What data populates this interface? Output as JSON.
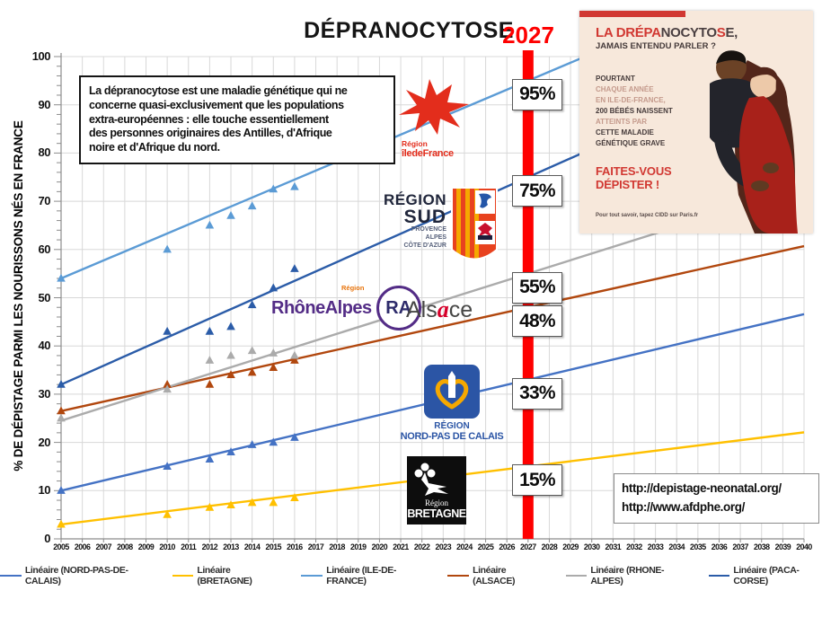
{
  "title": "DÉPRANOCYTOSE",
  "year_marker": "2027",
  "y_axis_title": "% DE DÉPISTAGE PARMI LES NOURISSONS NÉS EN FRANCE",
  "description_lines": [
    "La  dépranocytose est une maladie génétique qui ne",
    "concerne quasi-exclusivement que les populations",
    "extra-européennes : elle touche essentiellement",
    "des personnes originaires des Antilles, d'Afrique",
    "noire et d'Afrique du nord."
  ],
  "links": [
    "http://depistage-neonatal.org/",
    "http://www.afdphe.org/"
  ],
  "chart_data": {
    "type": "scatter",
    "x_range": [
      2005,
      2040
    ],
    "y_range": [
      0,
      100
    ],
    "grid": true,
    "marker_year": 2027,
    "marker_color": "#FE0000",
    "x_ticks": [
      2005,
      2006,
      2007,
      2008,
      2009,
      2010,
      2011,
      2012,
      2013,
      2014,
      2015,
      2016,
      2017,
      2018,
      2019,
      2020,
      2021,
      2022,
      2023,
      2024,
      2025,
      2026,
      2027,
      2028,
      2029,
      2030,
      2031,
      2032,
      2033,
      2034,
      2035,
      2036,
      2037,
      2038,
      2039,
      2040
    ],
    "y_ticks": [
      0,
      10,
      20,
      30,
      40,
      50,
      60,
      70,
      80,
      90,
      100
    ],
    "scatter_years": [
      2005,
      2010,
      2012,
      2013,
      2014,
      2015,
      2016
    ],
    "series": [
      {
        "name": "BRETAGNE",
        "color": "#FFC000",
        "points": [
          3,
          5,
          6.5,
          7,
          7.5,
          7.5,
          8.5
        ],
        "trend_2005": 3,
        "trend_2027": 15,
        "label_2027": "15%"
      },
      {
        "name": "NORD-PAS-DE-CALAIS",
        "color": "#4472C4",
        "points": [
          10,
          15,
          16.5,
          18,
          19.5,
          20,
          21
        ],
        "trend_2005": 10,
        "trend_2027": 33,
        "label_2027": "33%"
      },
      {
        "name": "ALSACE",
        "color": "#B1470E",
        "points": [
          26.5,
          32,
          32,
          34,
          34.5,
          35.5,
          37
        ],
        "trend_2005": 26.5,
        "trend_2027": 48,
        "label_2027": "48%"
      },
      {
        "name": "RHONE-ALPES",
        "color": "#ABABAB",
        "points": [
          25,
          31,
          37,
          38,
          39,
          38.5,
          38
        ],
        "trend_2005": 24.5,
        "trend_2027": 55,
        "label_2027": "55%"
      },
      {
        "name": "PACA-CORSE",
        "color": "#2B5CA8",
        "points": [
          32,
          43,
          43,
          44,
          48.5,
          52,
          56
        ],
        "trend_2005": 32,
        "trend_2027": 75,
        "label_2027": "75%"
      },
      {
        "name": "ILE-DE-FRANCE",
        "color": "#5B9BD5",
        "points": [
          54,
          60,
          65,
          67,
          69,
          72.5,
          73
        ],
        "trend_2005": 54,
        "trend_2027": 95,
        "label_2027": "95%"
      }
    ],
    "legend": [
      {
        "label": "Linéaire (NORD-PAS-DE-CALAIS)",
        "color": "#4472C4"
      },
      {
        "label": "Linéaire (BRETAGNE)",
        "color": "#FFC000"
      },
      {
        "label": "Linéaire (ILE-DE-FRANCE)",
        "color": "#5B9BD5"
      },
      {
        "label": "Linéaire (ALSACE)",
        "color": "#B1470E"
      },
      {
        "label": "Linéaire (RHONE-ALPES)",
        "color": "#ABABAB"
      },
      {
        "label": "Linéaire (PACA-CORSE)",
        "color": "#2B5CA8"
      }
    ]
  },
  "logos": {
    "ile_de_france": {
      "line1": "Région",
      "line2": "îledeFrance"
    },
    "region_sud": {
      "line1": "RÉGION",
      "line2": "SUD",
      "sub1": "PROVENCE",
      "sub2": "ALPES",
      "sub3": "CÔTE D'AZUR"
    },
    "rhone_alpes": {
      "small": "Région",
      "text": "RhôneAlpes",
      "badge": "RA"
    },
    "alsace": {
      "pre": "Als",
      "mid": "a",
      "post": "ce"
    },
    "nord_pas_de_calais": {
      "line1": "RÉGION",
      "line2": "NORD-PAS DE CALAIS"
    },
    "bretagne": {
      "line1": "Région",
      "line2": "BRETAGNE"
    }
  },
  "poster": {
    "title_parts": [
      {
        "t": "LA DRÉPA",
        "c": "red"
      },
      {
        "t": "NOCYTO",
        "c": "dark"
      },
      {
        "t": "S",
        "c": "red"
      },
      {
        "t": "E,",
        "c": "dark"
      }
    ],
    "subtitle": "JAMAIS ENTENDU PARLER ?",
    "body_lines": [
      {
        "t": "POURTANT",
        "c": "dark"
      },
      {
        "t": "CHAQUE ANNÉE",
        "c": "muted"
      },
      {
        "t": "EN ILE-DE-FRANCE,",
        "c": "muted"
      },
      {
        "t": "200 BÉBÉS NAISSENT",
        "c": "dark"
      },
      {
        "t": "ATTEINTS PAR",
        "c": "muted"
      },
      {
        "t": "CETTE MALADIE",
        "c": "dark"
      },
      {
        "t": "GÉNÉTIQUE GRAVE",
        "c": "dark"
      }
    ],
    "cta_line1": "FAITES-VOUS",
    "cta_line2": "DÉPISTER !",
    "footer": "Pour tout savoir, tapez CIDD sur Paris.fr"
  }
}
